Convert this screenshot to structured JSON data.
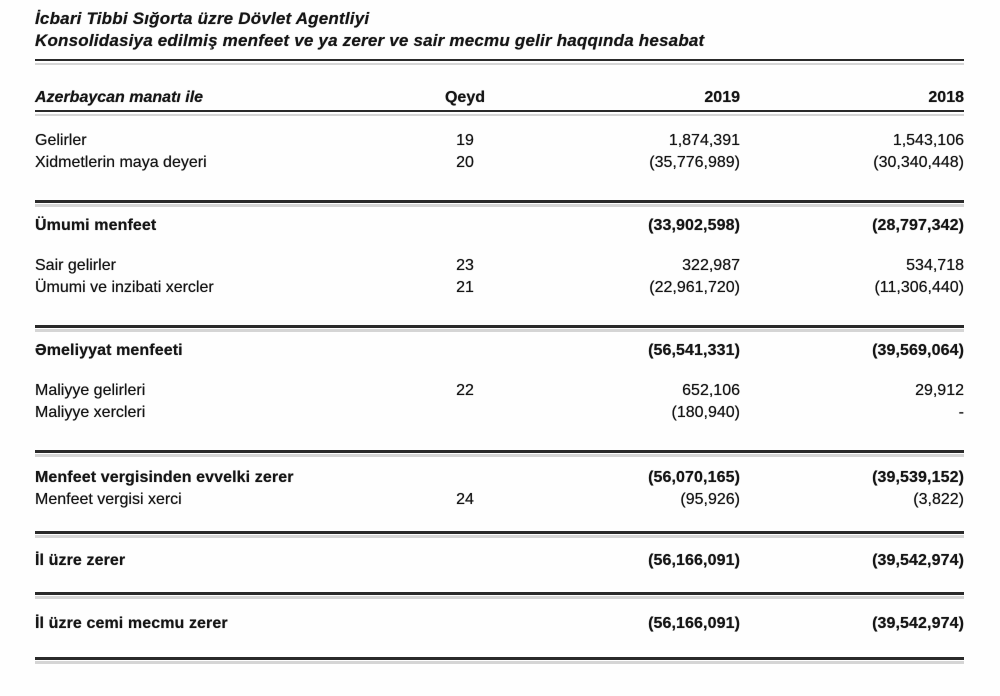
{
  "document": {
    "title_line1": "İcbari Tibbi Sığorta üzre Dövlet Agentliyi",
    "title_line2": "Konsolidasiya edilmiş menfeet ve ya zerer ve sair mecmu gelir haqqında hesabat"
  },
  "table": {
    "columns": {
      "label": "Azerbaycan manatı ile",
      "note": "Qeyd",
      "year1": "2019",
      "year2": "2018"
    },
    "rows": [
      {
        "label": "Gelirler",
        "note": "19",
        "y2019": "1,874,391",
        "y2018": "1,543,106"
      },
      {
        "label": "Xidmetlerin maya deyeri",
        "note": "20",
        "y2019": "(35,776,989)",
        "y2018": "(30,340,448)"
      },
      {
        "label": "Ümumi menfeet",
        "note": "",
        "y2019": "(33,902,598)",
        "y2018": "(28,797,342)"
      },
      {
        "label": "Sair gelirler",
        "note": "23",
        "y2019": "322,987",
        "y2018": "534,718"
      },
      {
        "label": "Ümumi ve inzibati xercler",
        "note": "21",
        "y2019": "(22,961,720)",
        "y2018": "(11,306,440)"
      },
      {
        "label": "Əmeliyyat menfeeti",
        "note": "",
        "y2019": "(56,541,331)",
        "y2018": "(39,569,064)"
      },
      {
        "label": "Maliyye gelirleri",
        "note": "22",
        "y2019": "652,106",
        "y2018": "29,912"
      },
      {
        "label": "Maliyye xercleri",
        "note": "",
        "y2019": "(180,940)",
        "y2018": "-"
      },
      {
        "label": "Menfeet vergisinden evvelki zerer",
        "note": "",
        "y2019": "(56,070,165)",
        "y2018": "(39,539,152)"
      },
      {
        "label": "Menfeet vergisi xerci",
        "note": "24",
        "y2019": "(95,926)",
        "y2018": "(3,822)"
      },
      {
        "label": "İl üzre zerer",
        "note": "",
        "y2019": "(56,166,091)",
        "y2018": "(39,542,974)"
      },
      {
        "label": "İl üzre cemi mecmu zerer",
        "note": "",
        "y2019": "(56,166,091)",
        "y2018": "(39,542,974)"
      }
    ]
  }
}
